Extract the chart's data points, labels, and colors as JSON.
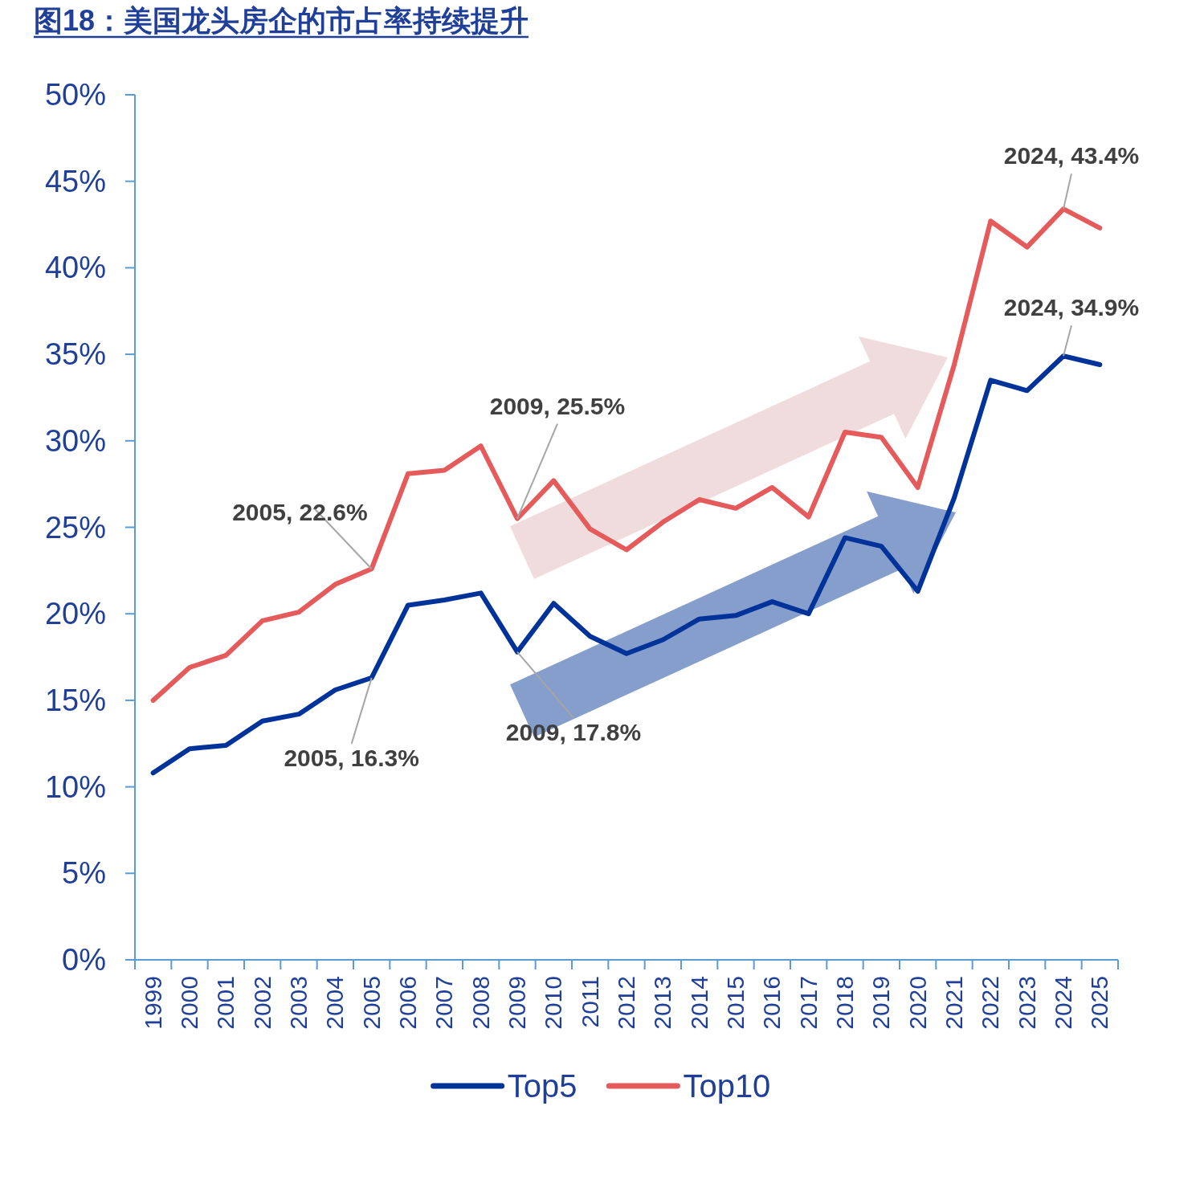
{
  "chart_data": {
    "type": "line",
    "title": "图18：美国龙头房企的市占率持续提升",
    "categories": [
      "1999",
      "2000",
      "2001",
      "2002",
      "2003",
      "2004",
      "2005",
      "2006",
      "2007",
      "2008",
      "2009",
      "2010",
      "2011",
      "2012",
      "2013",
      "2014",
      "2015",
      "2016",
      "2017",
      "2018",
      "2019",
      "2020",
      "2021",
      "2022",
      "2023",
      "2024",
      "2025"
    ],
    "series": [
      {
        "name": "Top5",
        "color": "#003399",
        "values": [
          10.8,
          12.2,
          12.4,
          13.8,
          14.2,
          15.6,
          16.3,
          20.5,
          20.8,
          21.2,
          17.8,
          20.6,
          18.7,
          17.7,
          18.5,
          19.7,
          19.9,
          20.7,
          20.0,
          24.4,
          23.9,
          21.3,
          26.7,
          33.5,
          32.9,
          34.9,
          34.4
        ]
      },
      {
        "name": "Top10",
        "color": "#e55a5a",
        "values": [
          15.0,
          16.9,
          17.6,
          19.6,
          20.1,
          21.7,
          22.6,
          28.1,
          28.3,
          29.7,
          25.5,
          27.7,
          24.9,
          23.7,
          25.3,
          26.6,
          26.1,
          27.3,
          25.6,
          30.5,
          30.2,
          27.3,
          34.4,
          42.7,
          41.2,
          43.4,
          42.3
        ]
      }
    ],
    "ylim": [
      0,
      50
    ],
    "yticks": [
      {
        "value": 0,
        "label": "0%"
      },
      {
        "value": 5,
        "label": "5%"
      },
      {
        "value": 10,
        "label": "10%"
      },
      {
        "value": 15,
        "label": "15%"
      },
      {
        "value": 20,
        "label": "20%"
      },
      {
        "value": 25,
        "label": "25%"
      },
      {
        "value": 30,
        "label": "30%"
      },
      {
        "value": 35,
        "label": "35%"
      },
      {
        "value": 40,
        "label": "40%"
      },
      {
        "value": 45,
        "label": "45%"
      },
      {
        "value": 50,
        "label": "50%"
      }
    ],
    "annotations": [
      {
        "text": "2005, 22.6%",
        "x": "2005",
        "y": 22.6
      },
      {
        "text": "2005, 16.3%",
        "x": "2005",
        "y": 16.3
      },
      {
        "text": "2009, 25.5%",
        "x": "2009",
        "y": 25.5
      },
      {
        "text": "2009, 17.8%",
        "x": "2009",
        "y": 17.8
      },
      {
        "text": "2024, 43.4%",
        "x": "2024",
        "y": 43.4
      },
      {
        "text": "2024, 34.9%",
        "x": "2024",
        "y": 34.9
      }
    ],
    "legend": "bottom",
    "grid": false,
    "line_style": "solid",
    "marker": "none"
  }
}
